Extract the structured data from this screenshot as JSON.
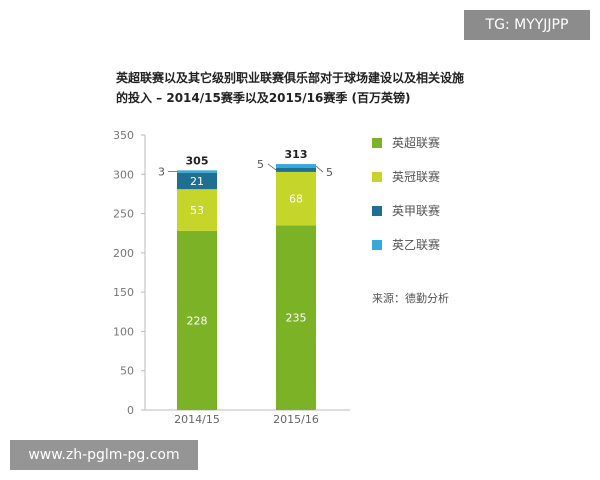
{
  "watermarks": {
    "top_right": "TG: MYYJJPP",
    "bottom_left": "www.zh-pglm-pg.com"
  },
  "chart_data": {
    "type": "bar",
    "stacked": true,
    "title": [
      "英超联赛以及其它级别职业联赛俱乐部对于球场建设以及相关设施",
      "的投入 – 2014/15赛季以及2015/16赛季 (百万英镑)"
    ],
    "categories": [
      "2014/15",
      "2015/16"
    ],
    "series": [
      {
        "name": "英超联赛",
        "color": "#7cb226",
        "values": [
          228,
          235
        ],
        "labels": [
          "228",
          "235"
        ]
      },
      {
        "name": "英冠联赛",
        "color": "#c5d52a",
        "values": [
          53,
          68
        ],
        "labels": [
          "53",
          "68"
        ]
      },
      {
        "name": "英甲联赛",
        "color": "#1f6f92",
        "values": [
          21,
          5
        ],
        "labels": [
          "21",
          "5"
        ]
      },
      {
        "name": "英乙联赛",
        "color": "#35a8dc",
        "values": [
          3,
          5
        ],
        "labels": [
          "3",
          "5"
        ]
      }
    ],
    "totals": [
      "305",
      "313"
    ],
    "yticks": [
      "0",
      "50",
      "100",
      "150",
      "200",
      "250",
      "300",
      "350"
    ],
    "ylim": [
      0,
      350
    ],
    "grid": false,
    "legend_position": "right"
  },
  "source": "来源：德勤分析"
}
